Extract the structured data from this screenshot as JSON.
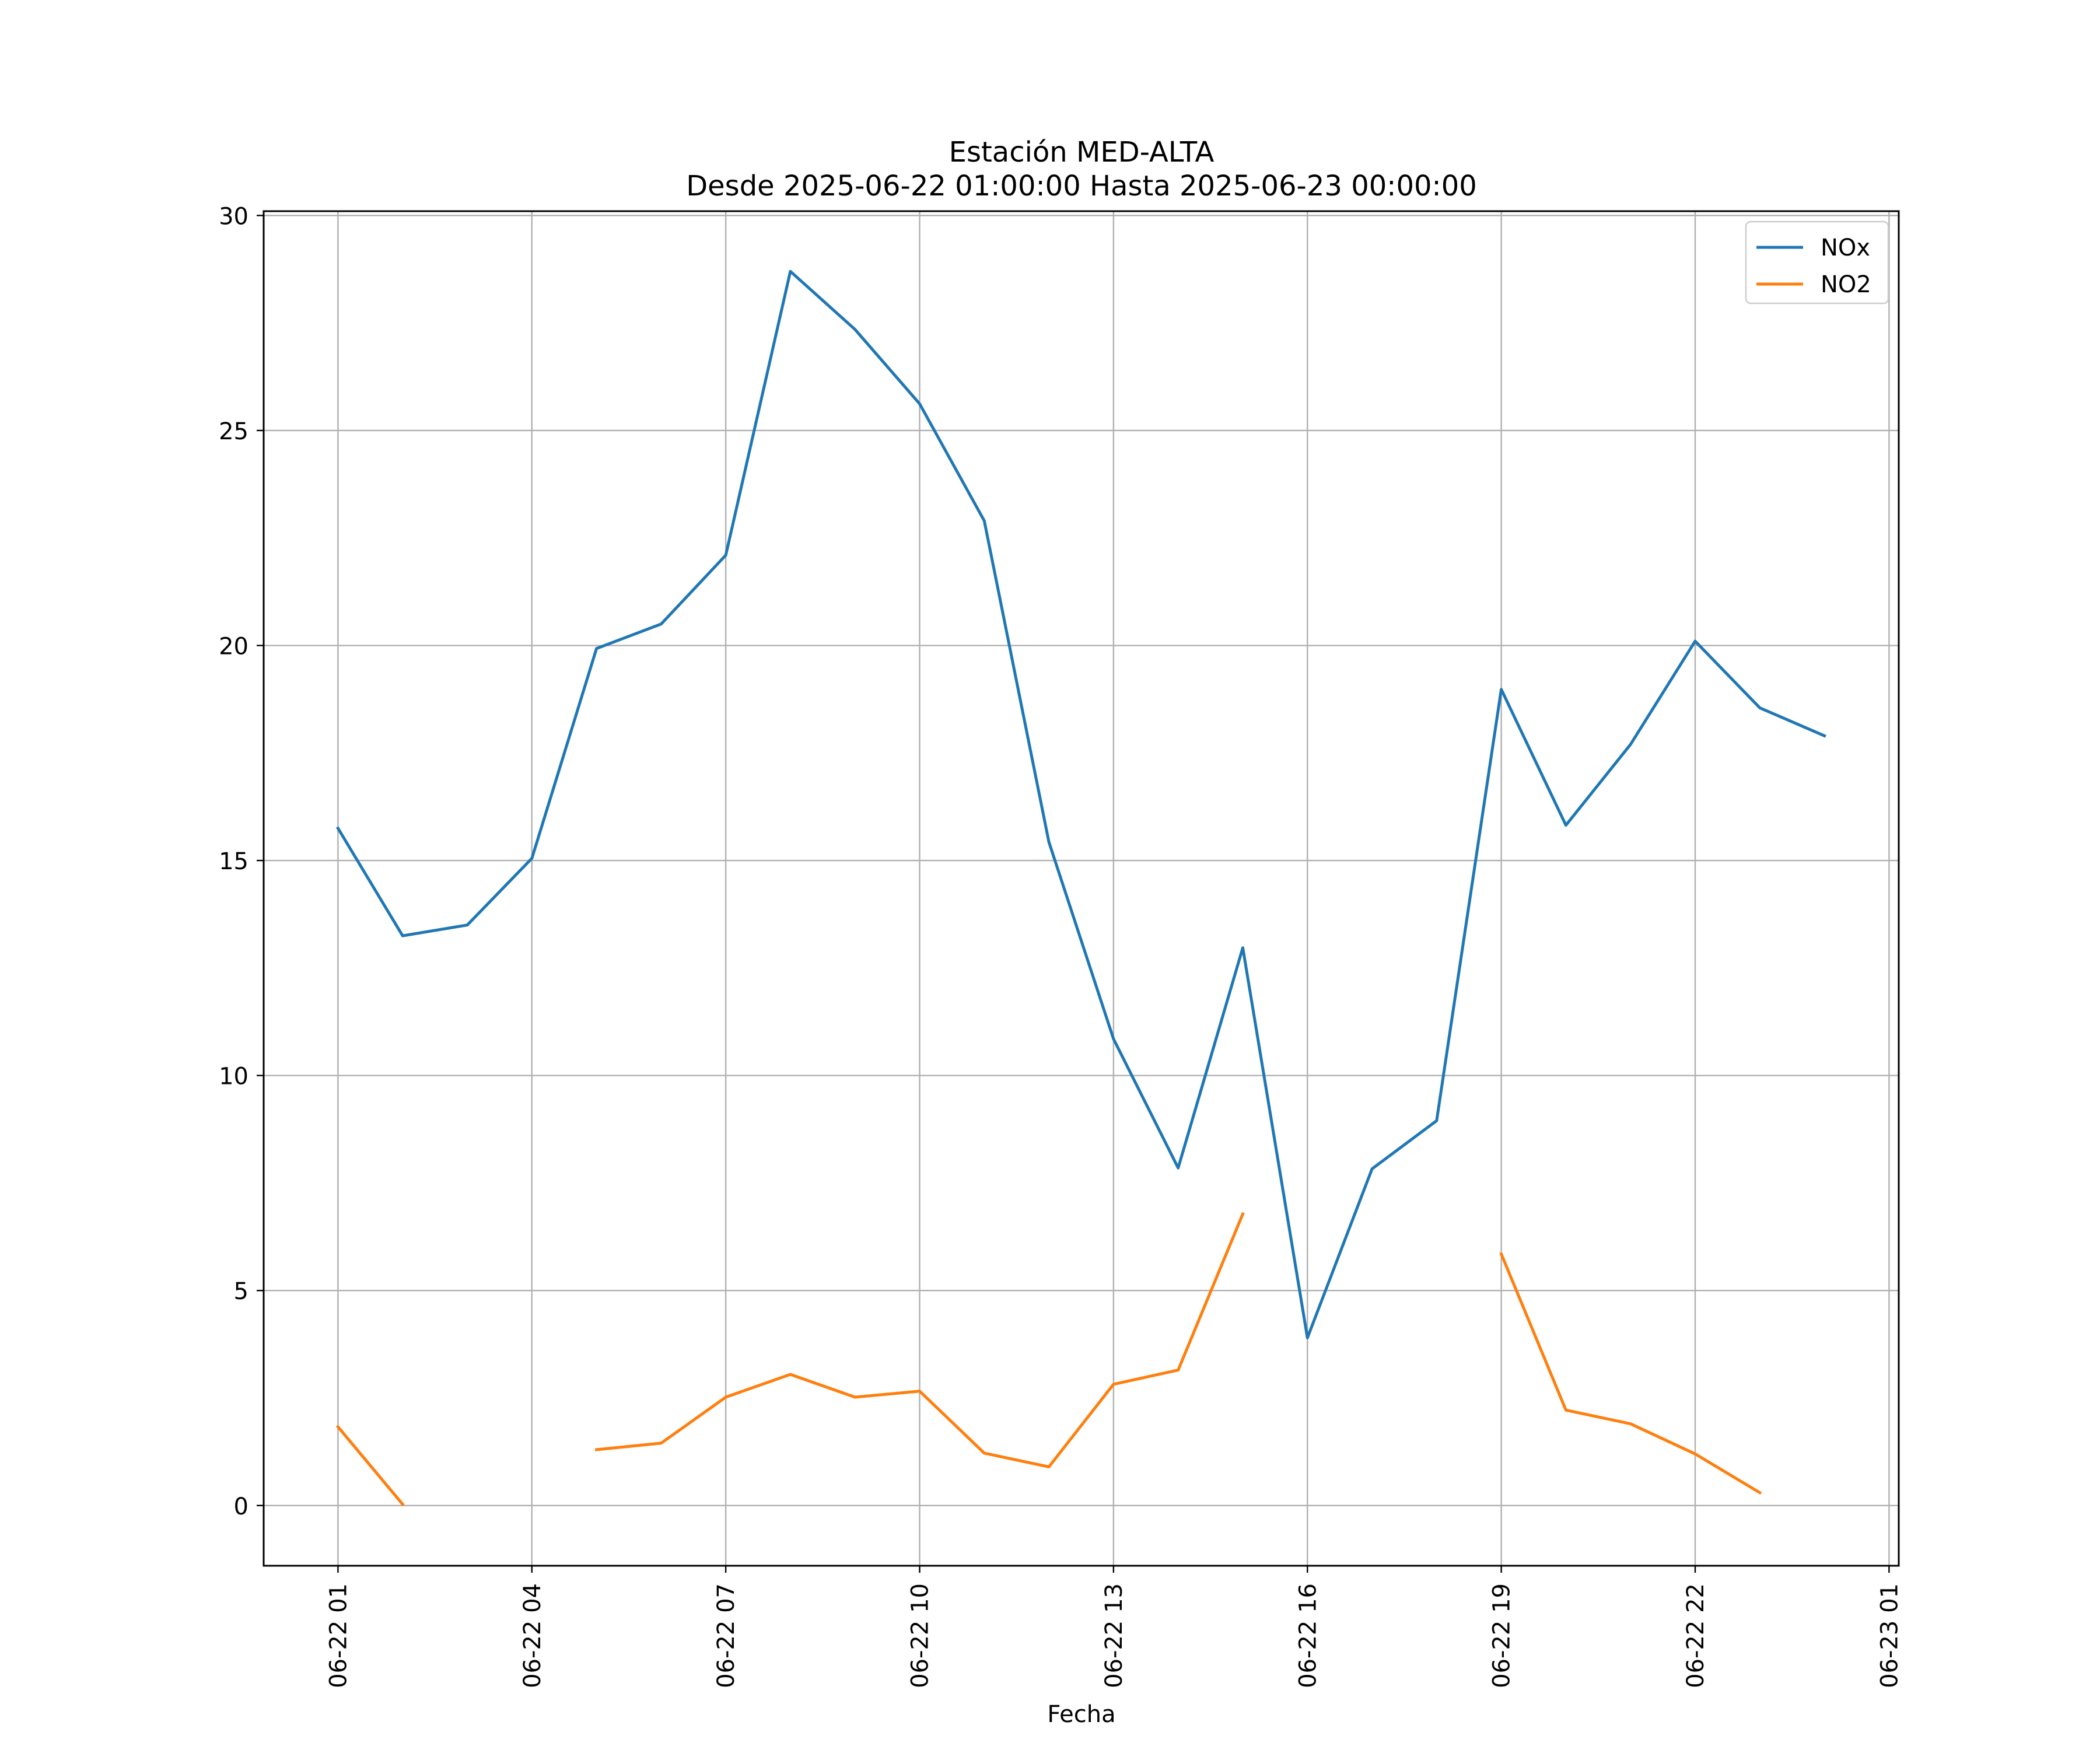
{
  "chart_data": {
    "type": "line",
    "title": "Estación MED-ALTA",
    "subtitle": "Desde 2025-06-22 01:00:00 Hasta 2025-06-23 00:00:00",
    "xlabel": "Fecha",
    "ylabel": "",
    "x": [
      "2025-06-22 01:00",
      "2025-06-22 02:00",
      "2025-06-22 03:00",
      "2025-06-22 04:00",
      "2025-06-22 05:00",
      "2025-06-22 06:00",
      "2025-06-22 07:00",
      "2025-06-22 08:00",
      "2025-06-22 09:00",
      "2025-06-22 10:00",
      "2025-06-22 11:00",
      "2025-06-22 12:00",
      "2025-06-22 13:00",
      "2025-06-22 14:00",
      "2025-06-22 15:00",
      "2025-06-22 16:00",
      "2025-06-22 17:00",
      "2025-06-22 18:00",
      "2025-06-22 19:00",
      "2025-06-22 20:00",
      "2025-06-22 21:00",
      "2025-06-22 22:00",
      "2025-06-22 23:00",
      "2025-06-23 00:00"
    ],
    "xlim": [
      "2025-06-21 23:51",
      "2025-06-23 01:09"
    ],
    "ylim": [
      -1.4,
      30.1
    ],
    "series": [
      {
        "name": "NOx",
        "color": "#1f77b4",
        "values": [
          15.75,
          13.25,
          13.5,
          15.05,
          19.93,
          20.5,
          22.1,
          28.7,
          27.35,
          25.62,
          22.9,
          15.43,
          10.85,
          7.85,
          12.97,
          3.9,
          7.83,
          8.95,
          18.98,
          15.82,
          17.7,
          20.1,
          18.55,
          17.9
        ]
      },
      {
        "name": "NO2",
        "color": "#ff7f0e",
        "values": [
          1.83,
          0.03,
          null,
          null,
          1.3,
          1.45,
          2.52,
          3.05,
          2.52,
          2.66,
          1.22,
          0.9,
          2.82,
          3.15,
          6.78,
          null,
          null,
          null,
          5.85,
          2.22,
          1.9,
          1.2,
          0.3,
          null
        ]
      }
    ],
    "x_ticks": [
      "06-22 01",
      "06-22 04",
      "06-22 07",
      "06-22 10",
      "06-22 13",
      "06-22 16",
      "06-22 19",
      "06-22 22",
      "06-23 01"
    ],
    "y_ticks": [
      "0",
      "5",
      "10",
      "15",
      "20",
      "25",
      "30"
    ],
    "grid": true,
    "legend": "top-right"
  }
}
